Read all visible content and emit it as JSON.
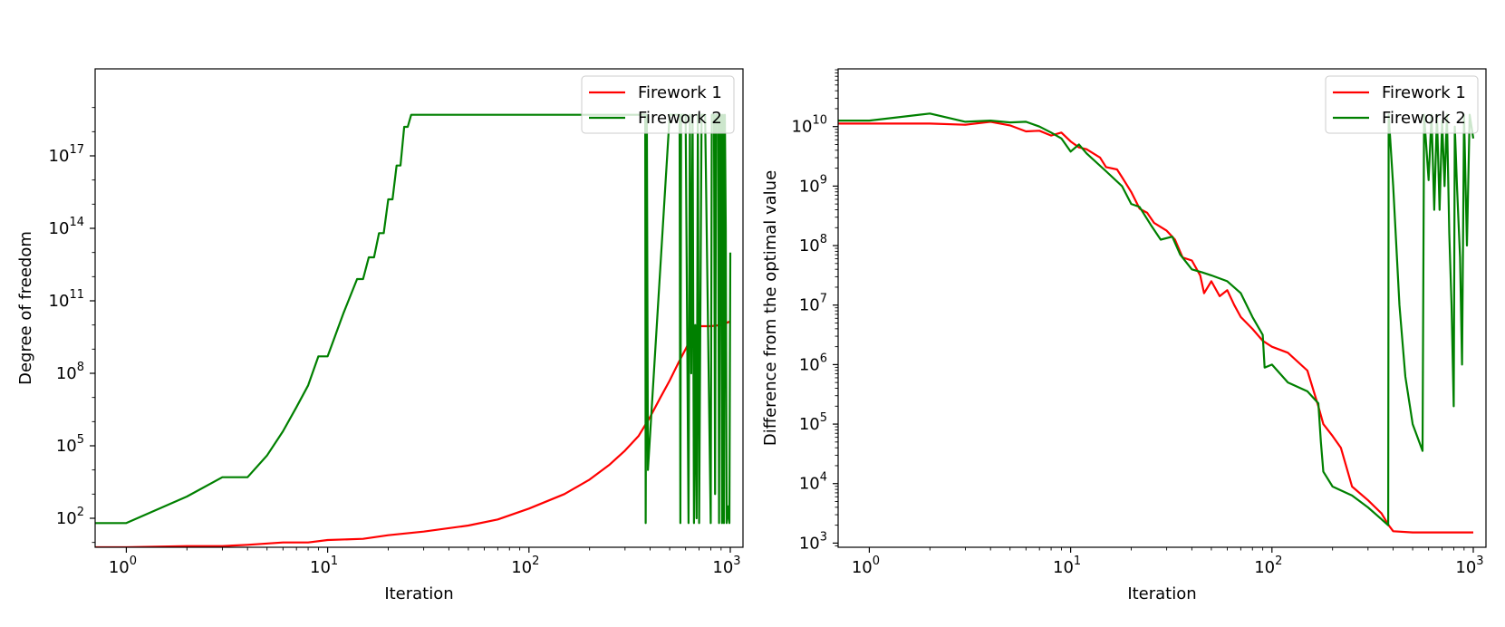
{
  "chart_data": [
    {
      "type": "line",
      "xscale": "log",
      "yscale": "log",
      "xlabel": "Iteration",
      "ylabel": "Degree of freedom",
      "xlim": [
        0.7,
        1000
      ],
      "ylim_log10": [
        0.8,
        20.6
      ],
      "xticks": [
        {
          "value": 1,
          "base": "10",
          "exp": "0"
        },
        {
          "value": 10,
          "base": "10",
          "exp": "1"
        },
        {
          "value": 100,
          "base": "10",
          "exp": "2"
        },
        {
          "value": 1000,
          "base": "10",
          "exp": "3"
        }
      ],
      "yticks": [
        {
          "log10": 2,
          "base": "10",
          "exp": "2"
        },
        {
          "log10": 5,
          "base": "10",
          "exp": "5"
        },
        {
          "log10": 8,
          "base": "10",
          "exp": "8"
        },
        {
          "log10": 11,
          "base": "10",
          "exp": "11"
        },
        {
          "log10": 14,
          "base": "10",
          "exp": "14"
        },
        {
          "log10": 17,
          "base": "10",
          "exp": "17"
        }
      ],
      "legend_position": "top-right",
      "series": [
        {
          "name": "Firework 1",
          "color": "#ff0000",
          "points_log10y": [
            [
              0.7,
              0.8
            ],
            [
              1,
              0.8
            ],
            [
              2,
              0.85
            ],
            [
              3,
              0.85
            ],
            [
              4,
              0.9
            ],
            [
              6,
              1.0
            ],
            [
              8,
              1.0
            ],
            [
              10,
              1.1
            ],
            [
              15,
              1.15
            ],
            [
              20,
              1.3
            ],
            [
              30,
              1.45
            ],
            [
              50,
              1.7
            ],
            [
              70,
              1.95
            ],
            [
              100,
              2.4
            ],
            [
              150,
              3.0
            ],
            [
              200,
              3.6
            ],
            [
              250,
              4.2
            ],
            [
              300,
              4.8
            ],
            [
              350,
              5.4
            ],
            [
              400,
              6.2
            ],
            [
              450,
              7.0
            ],
            [
              500,
              7.7
            ],
            [
              550,
              8.4
            ],
            [
              600,
              9.0
            ],
            [
              650,
              9.6
            ],
            [
              700,
              9.95
            ],
            [
              800,
              9.95
            ],
            [
              900,
              10.0
            ],
            [
              1000,
              10.15
            ]
          ]
        },
        {
          "name": "Firework 2",
          "color": "#008000",
          "points_log10y": [
            [
              0.7,
              1.8
            ],
            [
              1,
              1.8
            ],
            [
              2,
              2.9
            ],
            [
              3,
              3.7
            ],
            [
              4,
              3.7
            ],
            [
              5,
              4.6
            ],
            [
              6,
              5.6
            ],
            [
              7,
              6.6
            ],
            [
              8,
              7.5
            ],
            [
              9,
              8.7
            ],
            [
              10,
              8.7
            ],
            [
              12,
              10.5
            ],
            [
              14,
              11.9
            ],
            [
              15,
              11.9
            ],
            [
              16,
              12.8
            ],
            [
              17,
              12.8
            ],
            [
              18,
              13.8
            ],
            [
              19,
              13.8
            ],
            [
              20,
              15.2
            ],
            [
              21,
              15.2
            ],
            [
              22,
              16.6
            ],
            [
              23,
              16.6
            ],
            [
              24,
              18.2
            ],
            [
              25,
              18.2
            ],
            [
              26,
              18.7
            ],
            [
              30,
              18.7
            ],
            [
              100,
              18.7
            ],
            [
              300,
              18.7
            ],
            [
              378,
              18.7
            ],
            [
              380,
              1.8
            ],
            [
              385,
              18.7
            ],
            [
              390,
              4.0
            ],
            [
              500,
              18.7
            ],
            [
              560,
              18.7
            ],
            [
              565,
              1.8
            ],
            [
              570,
              18.7
            ],
            [
              600,
              18.7
            ],
            [
              620,
              1.8
            ],
            [
              630,
              18.7
            ],
            [
              640,
              8.0
            ],
            [
              650,
              18.7
            ],
            [
              660,
              1.8
            ],
            [
              670,
              10.0
            ],
            [
              680,
              2.0
            ],
            [
              690,
              18.7
            ],
            [
              700,
              1.8
            ],
            [
              720,
              18.7
            ],
            [
              750,
              18.7
            ],
            [
              800,
              1.8
            ],
            [
              810,
              18.7
            ],
            [
              830,
              18.7
            ],
            [
              840,
              3.0
            ],
            [
              850,
              18.7
            ],
            [
              870,
              18.7
            ],
            [
              880,
              1.8
            ],
            [
              890,
              18.7
            ],
            [
              900,
              18.7
            ],
            [
              910,
              1.8
            ],
            [
              920,
              18.7
            ],
            [
              930,
              1.8
            ],
            [
              940,
              18.7
            ],
            [
              950,
              14.0
            ],
            [
              960,
              1.8
            ],
            [
              980,
              2.5
            ],
            [
              990,
              1.8
            ],
            [
              1000,
              13.0
            ]
          ]
        }
      ]
    },
    {
      "type": "line",
      "xscale": "log",
      "yscale": "log",
      "xlabel": "Iteration",
      "ylabel": "Difference from the optimal value",
      "xlim": [
        0.7,
        1000
      ],
      "ylim_log10": [
        2.93,
        10.97
      ],
      "xticks": [
        {
          "value": 1,
          "base": "10",
          "exp": "0"
        },
        {
          "value": 10,
          "base": "10",
          "exp": "1"
        },
        {
          "value": 100,
          "base": "10",
          "exp": "2"
        },
        {
          "value": 1000,
          "base": "10",
          "exp": "3"
        }
      ],
      "yticks": [
        {
          "log10": 3,
          "base": "10",
          "exp": "3"
        },
        {
          "log10": 4,
          "base": "10",
          "exp": "4"
        },
        {
          "log10": 5,
          "base": "10",
          "exp": "5"
        },
        {
          "log10": 6,
          "base": "10",
          "exp": "6"
        },
        {
          "log10": 7,
          "base": "10",
          "exp": "7"
        },
        {
          "log10": 8,
          "base": "10",
          "exp": "8"
        },
        {
          "log10": 9,
          "base": "10",
          "exp": "9"
        },
        {
          "log10": 10,
          "base": "10",
          "exp": "10"
        }
      ],
      "legend_position": "top-right",
      "series": [
        {
          "name": "Firework 1",
          "color": "#ff0000",
          "points_log10y": [
            [
              0.7,
              10.05
            ],
            [
              1,
              10.05
            ],
            [
              2,
              10.05
            ],
            [
              3,
              10.03
            ],
            [
              4,
              10.08
            ],
            [
              5,
              10.02
            ],
            [
              6,
              9.92
            ],
            [
              7,
              9.93
            ],
            [
              8,
              9.85
            ],
            [
              9,
              9.9
            ],
            [
              10,
              9.75
            ],
            [
              11,
              9.65
            ],
            [
              12,
              9.62
            ],
            [
              14,
              9.48
            ],
            [
              15,
              9.32
            ],
            [
              17,
              9.28
            ],
            [
              18,
              9.15
            ],
            [
              20,
              8.9
            ],
            [
              22,
              8.62
            ],
            [
              24,
              8.55
            ],
            [
              26,
              8.38
            ],
            [
              30,
              8.25
            ],
            [
              33,
              8.1
            ],
            [
              36,
              7.8
            ],
            [
              40,
              7.75
            ],
            [
              44,
              7.5
            ],
            [
              46,
              7.2
            ],
            [
              50,
              7.4
            ],
            [
              55,
              7.15
            ],
            [
              60,
              7.25
            ],
            [
              65,
              7.0
            ],
            [
              70,
              6.8
            ],
            [
              80,
              6.6
            ],
            [
              90,
              6.4
            ],
            [
              100,
              6.3
            ],
            [
              120,
              6.2
            ],
            [
              150,
              5.9
            ],
            [
              170,
              5.3
            ],
            [
              180,
              5.0
            ],
            [
              200,
              4.8
            ],
            [
              220,
              4.6
            ],
            [
              250,
              3.95
            ],
            [
              300,
              3.72
            ],
            [
              350,
              3.5
            ],
            [
              380,
              3.3
            ],
            [
              400,
              3.2
            ],
            [
              500,
              3.18
            ],
            [
              700,
              3.18
            ],
            [
              1000,
              3.18
            ]
          ]
        },
        {
          "name": "Firework 2",
          "color": "#008000",
          "points_log10y": [
            [
              0.7,
              10.1
            ],
            [
              1,
              10.1
            ],
            [
              2,
              10.22
            ],
            [
              3,
              10.08
            ],
            [
              4,
              10.1
            ],
            [
              5,
              10.07
            ],
            [
              6,
              10.08
            ],
            [
              7,
              10.0
            ],
            [
              8,
              9.9
            ],
            [
              9,
              9.8
            ],
            [
              10,
              9.58
            ],
            [
              11,
              9.7
            ],
            [
              12,
              9.55
            ],
            [
              15,
              9.25
            ],
            [
              18,
              9.0
            ],
            [
              20,
              8.7
            ],
            [
              22,
              8.65
            ],
            [
              25,
              8.35
            ],
            [
              28,
              8.1
            ],
            [
              32,
              8.15
            ],
            [
              35,
              7.85
            ],
            [
              40,
              7.6
            ],
            [
              45,
              7.55
            ],
            [
              50,
              7.5
            ],
            [
              60,
              7.4
            ],
            [
              70,
              7.2
            ],
            [
              80,
              6.8
            ],
            [
              90,
              6.5
            ],
            [
              92,
              5.95
            ],
            [
              100,
              6.0
            ],
            [
              120,
              5.7
            ],
            [
              150,
              5.55
            ],
            [
              170,
              5.35
            ],
            [
              175,
              4.7
            ],
            [
              180,
              4.2
            ],
            [
              200,
              3.95
            ],
            [
              250,
              3.8
            ],
            [
              300,
              3.6
            ],
            [
              350,
              3.4
            ],
            [
              378,
              3.3
            ],
            [
              380,
              10.2
            ],
            [
              400,
              9.0
            ],
            [
              430,
              7.0
            ],
            [
              460,
              5.8
            ],
            [
              500,
              5.0
            ],
            [
              560,
              4.55
            ],
            [
              570,
              10.2
            ],
            [
              600,
              9.1
            ],
            [
              620,
              10.2
            ],
            [
              640,
              8.6
            ],
            [
              660,
              10.2
            ],
            [
              680,
              8.6
            ],
            [
              700,
              10.1
            ],
            [
              720,
              9.0
            ],
            [
              740,
              10.2
            ],
            [
              760,
              8.2
            ],
            [
              780,
              7.0
            ],
            [
              800,
              5.3
            ],
            [
              810,
              10.0
            ],
            [
              830,
              9.0
            ],
            [
              860,
              7.8
            ],
            [
              880,
              6.0
            ],
            [
              900,
              10.2
            ],
            [
              930,
              8.0
            ],
            [
              960,
              10.2
            ],
            [
              1000,
              9.8
            ]
          ]
        }
      ]
    }
  ]
}
